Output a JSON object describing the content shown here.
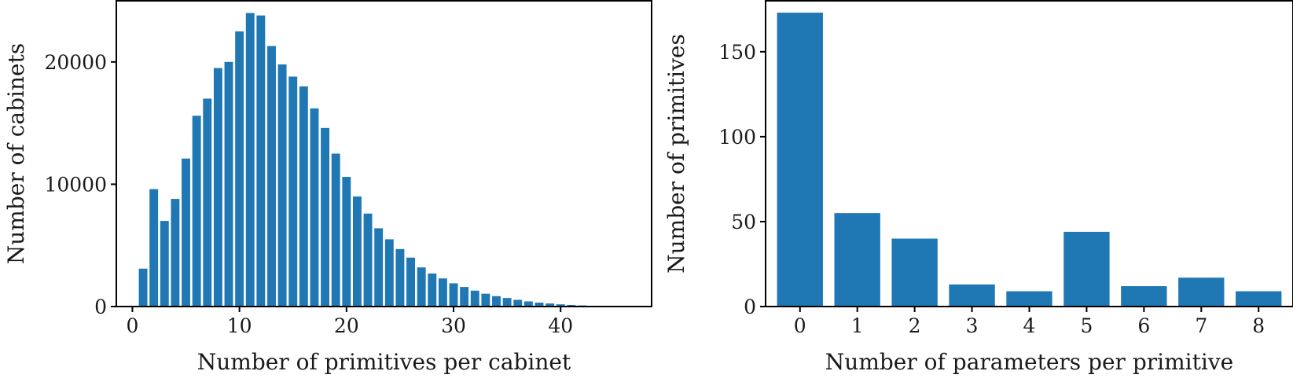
{
  "chart_data": [
    {
      "type": "bar",
      "xlabel": "Number of primitives per cabinet",
      "ylabel": "Number of cabinets",
      "xlim": [
        -1.5,
        48.5
      ],
      "ylim": [
        0,
        25000
      ],
      "xticks": [
        0,
        10,
        20,
        30,
        40
      ],
      "yticks": [
        0,
        10000,
        20000
      ],
      "xtick_labels": [
        "0",
        "10",
        "20",
        "30",
        "40"
      ],
      "ytick_labels": [
        "0",
        "10000",
        "20000"
      ],
      "grid": false,
      "color": "#1f77b4",
      "x": [
        1,
        2,
        3,
        4,
        5,
        6,
        7,
        8,
        9,
        10,
        11,
        12,
        13,
        14,
        15,
        16,
        17,
        18,
        19,
        20,
        21,
        22,
        23,
        24,
        25,
        26,
        27,
        28,
        29,
        30,
        31,
        32,
        33,
        34,
        35,
        36,
        37,
        38,
        39,
        40,
        41,
        42,
        43,
        44,
        45,
        46
      ],
      "values": [
        3100,
        9600,
        7000,
        8800,
        12100,
        15600,
        17000,
        19500,
        20000,
        22500,
        24000,
        23800,
        21300,
        19800,
        18800,
        18000,
        16200,
        14600,
        12500,
        10600,
        9000,
        7600,
        6400,
        5500,
        4700,
        4000,
        3200,
        2700,
        2300,
        1900,
        1600,
        1300,
        1050,
        850,
        700,
        550,
        420,
        320,
        250,
        180,
        130,
        90,
        60,
        40,
        30,
        20
      ]
    },
    {
      "type": "bar",
      "xlabel": "Number of parameters per primitive",
      "ylabel": "Number of primitives",
      "xlim": [
        -0.6,
        8.6
      ],
      "ylim": [
        0,
        180
      ],
      "xticks": [
        0,
        1,
        2,
        3,
        4,
        5,
        6,
        7,
        8
      ],
      "yticks": [
        0,
        50,
        100,
        150
      ],
      "xtick_labels": [
        "0",
        "1",
        "2",
        "3",
        "4",
        "5",
        "6",
        "7",
        "8"
      ],
      "ytick_labels": [
        "0",
        "50",
        "100",
        "150"
      ],
      "grid": false,
      "color": "#1f77b4",
      "x": [
        0,
        1,
        2,
        3,
        4,
        5,
        6,
        7,
        8
      ],
      "values": [
        173,
        55,
        40,
        13,
        9,
        44,
        12,
        17,
        9
      ]
    }
  ]
}
